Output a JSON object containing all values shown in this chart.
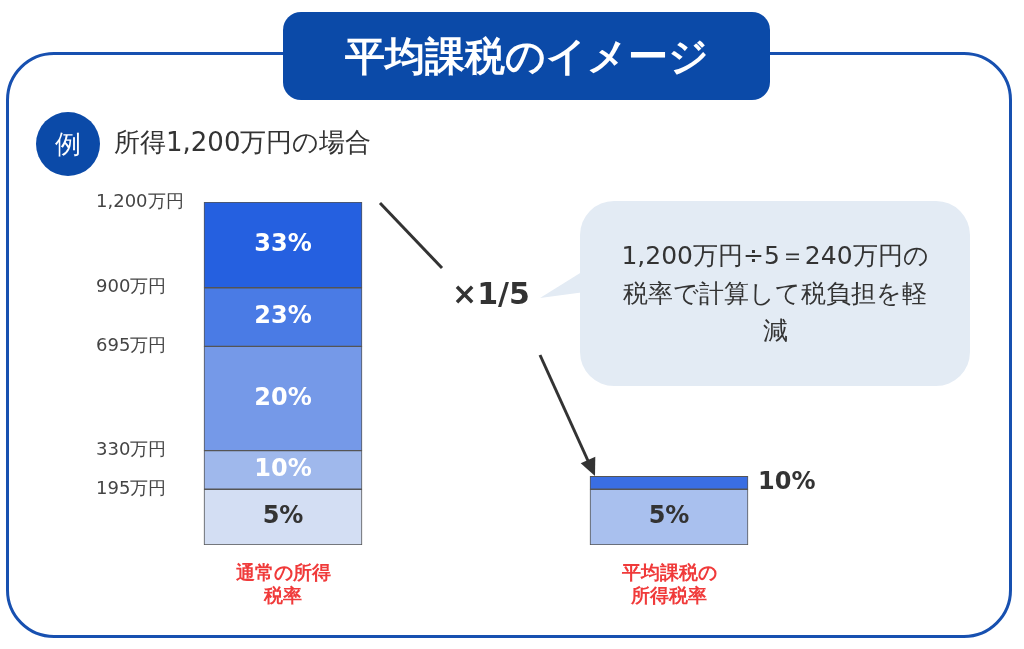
{
  "chart_data": {
    "type": "bar",
    "stacked": true,
    "title": "平均課税のイメージ",
    "subtitle": "所得1,200万円の場合",
    "categories": [
      "通常の所得税率",
      "平均課税の所得税率"
    ],
    "series": [
      {
        "name": "5%",
        "colors": [
          "#d3def3",
          "#a9c0ee"
        ],
        "values": [
          195,
          195
        ]
      },
      {
        "name": "10%",
        "colors": [
          "#9fb8ec",
          "#3a6ee3"
        ],
        "values": [
          135,
          45
        ]
      },
      {
        "name": "20%",
        "color": "#7599e8",
        "values": [
          365,
          null
        ]
      },
      {
        "name": "23%",
        "color": "#4a7be5",
        "values": [
          205,
          null
        ]
      },
      {
        "name": "33%",
        "color": "#2560e0",
        "values": [
          300,
          null
        ]
      }
    ],
    "ylim": [
      0,
      1200
    ],
    "yticks": [
      {
        "value": 195,
        "label": "195万円"
      },
      {
        "value": 330,
        "label": "330万円"
      },
      {
        "value": 695,
        "label": "695万円"
      },
      {
        "value": 900,
        "label": "900万円"
      },
      {
        "value": 1200,
        "label": "1,200万円"
      }
    ],
    "annotations": [
      "例",
      "×1/5",
      "1,200万円÷5＝240万円の税率で計算して税負担を軽減"
    ]
  }
}
